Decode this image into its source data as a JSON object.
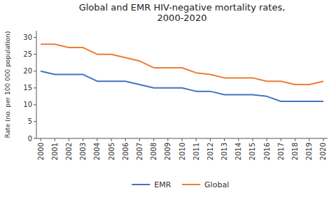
{
  "chart_data": {
    "type": "line",
    "title": "Global and EMR HIV-negative mortality rates,\n2000-2020",
    "y_label": "Rate (no. per 100 000 population)",
    "x": [
      2000,
      2001,
      2002,
      2003,
      2004,
      2005,
      2006,
      2007,
      2008,
      2009,
      2010,
      2011,
      2012,
      2013,
      2014,
      2015,
      2016,
      2017,
      2018,
      2019,
      2020
    ],
    "series": [
      {
        "name": "EMR",
        "color": "#4472C4",
        "values": [
          20.0,
          19.0,
          19.0,
          19.0,
          17.0,
          17.0,
          17.0,
          16.0,
          15.0,
          15.0,
          15.0,
          14.0,
          14.0,
          13.0,
          13.0,
          13.0,
          12.5,
          11.0,
          11.0,
          11.0,
          11.0
        ]
      },
      {
        "name": "Global",
        "color": "#ED7D31",
        "values": [
          28.0,
          28.0,
          27.0,
          27.0,
          25.0,
          25.0,
          24.0,
          23.0,
          21.0,
          21.0,
          21.0,
          19.5,
          19.0,
          18.0,
          18.0,
          18.0,
          17.0,
          17.0,
          16.0,
          16.0,
          17.0
        ]
      }
    ],
    "xlim": [
      1999.7,
      2020.3
    ],
    "xticks": [
      2000,
      2001,
      2002,
      2003,
      2004,
      2005,
      2006,
      2007,
      2008,
      2009,
      2010,
      2011,
      2012,
      2013,
      2014,
      2015,
      2016,
      2017,
      2018,
      2019,
      2020
    ],
    "ylim": [
      0,
      32
    ],
    "yticks": [
      0,
      5,
      10,
      15,
      20,
      25,
      30
    ],
    "grid": false,
    "legend": "bottom"
  }
}
